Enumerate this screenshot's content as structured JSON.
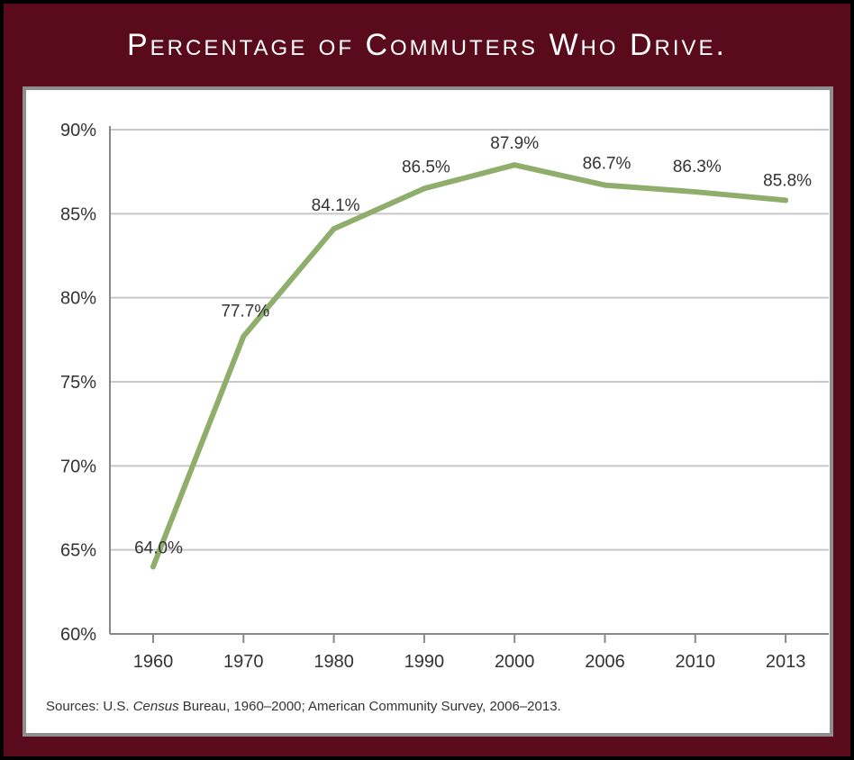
{
  "title": "Percentage of Commuters Who Drive.",
  "source": {
    "prefix": "Sources: U.S. ",
    "italic": "Census",
    "suffix": " Bureau, 1960–2000; American Community Survey, 2006–2013."
  },
  "colors": {
    "frame": "#5a0b1b",
    "line": "#8fae6b",
    "grid": "#c8c8c8"
  },
  "chart_data": {
    "type": "line",
    "categories": [
      "1960",
      "1970",
      "1980",
      "1990",
      "2000",
      "2006",
      "2010",
      "2013"
    ],
    "values": [
      64.0,
      77.7,
      84.1,
      86.5,
      87.9,
      86.7,
      86.3,
      85.8
    ],
    "data_labels": [
      "64.0%",
      "77.7%",
      "84.1%",
      "86.5%",
      "87.9%",
      "86.7%",
      "86.3%",
      "85.8%"
    ],
    "y_ticks": [
      "60%",
      "65%",
      "70%",
      "75%",
      "80%",
      "85%",
      "90%"
    ],
    "ylim": [
      60,
      90
    ],
    "grid": true
  }
}
